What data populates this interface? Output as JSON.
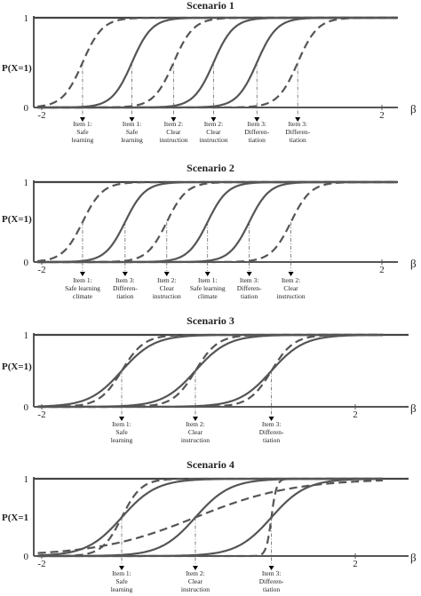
{
  "chart_data": [
    {
      "type": "line",
      "title": "Scenario 1",
      "ylabel": "P(X=1)",
      "xlabel": "β",
      "xlim": [
        -2,
        2.3
      ],
      "ylim": [
        0,
        1
      ],
      "xticks": [
        -2,
        2
      ],
      "yticks": [
        0,
        1
      ],
      "grid": false,
      "function": "logistic P = 1/(1+exp(-a(β-b)))",
      "series": [
        {
          "style": "dashed",
          "b": -1.52,
          "a": 8.5,
          "color": "#555555"
        },
        {
          "style": "solid",
          "b": -0.94,
          "a": 8.5,
          "color": "#555555"
        },
        {
          "style": "dashed",
          "b": -0.45,
          "a": 8.5,
          "color": "#555555"
        },
        {
          "style": "solid",
          "b": 0.02,
          "a": 8.5,
          "color": "#555555"
        },
        {
          "style": "solid",
          "b": 0.53,
          "a": 8.5,
          "color": "#555555"
        },
        {
          "style": "dashed",
          "b": 1.01,
          "a": 8.5,
          "color": "#555555"
        }
      ],
      "item_labels": [
        {
          "x": -1.52,
          "text": [
            "Item 1:",
            "Safe",
            "learning"
          ]
        },
        {
          "x": -0.94,
          "text": [
            "Item 1:",
            "Safe",
            "learning"
          ]
        },
        {
          "x": -0.45,
          "text": [
            "Item 2:",
            "Clear",
            "instruction"
          ]
        },
        {
          "x": 0.02,
          "text": [
            "Item 2:",
            "Clear",
            "instruction"
          ]
        },
        {
          "x": 0.53,
          "text": [
            "Item 3:",
            "Differen-",
            "tiation"
          ]
        },
        {
          "x": 1.01,
          "text": [
            "Item 3:",
            "Differen-",
            "tiation"
          ]
        }
      ]
    },
    {
      "type": "line",
      "title": "Scenario 2",
      "ylabel": "P(X=1)",
      "xlabel": "β",
      "xlim": [
        -2,
        2.3
      ],
      "ylim": [
        0,
        1
      ],
      "xticks": [
        -2,
        2
      ],
      "yticks": [
        0,
        1
      ],
      "grid": false,
      "function": "logistic P = 1/(1+exp(-a(β-b)))",
      "series": [
        {
          "style": "dashed",
          "b": -1.52,
          "a": 8.5,
          "color": "#555555"
        },
        {
          "style": "solid",
          "b": -1.02,
          "a": 8.5,
          "color": "#555555"
        },
        {
          "style": "dashed",
          "b": -0.53,
          "a": 8.5,
          "color": "#555555"
        },
        {
          "style": "solid",
          "b": -0.05,
          "a": 8.5,
          "color": "#555555"
        },
        {
          "style": "solid",
          "b": 0.44,
          "a": 8.5,
          "color": "#555555"
        },
        {
          "style": "dashed",
          "b": 0.93,
          "a": 8.5,
          "color": "#555555"
        }
      ],
      "item_labels": [
        {
          "x": -1.52,
          "text": [
            "Item 1:",
            "Safe learning",
            "climate"
          ]
        },
        {
          "x": -1.02,
          "text": [
            "Item 3:",
            "Differen-",
            "tiation"
          ]
        },
        {
          "x": -0.53,
          "text": [
            "Item 2:",
            "Clear",
            "instruction"
          ]
        },
        {
          "x": -0.05,
          "text": [
            "Item 1:",
            "Safe learning",
            "climate"
          ]
        },
        {
          "x": 0.44,
          "text": [
            "Item 3:",
            "Differen-",
            "tiation"
          ]
        },
        {
          "x": 0.93,
          "text": [
            "Item 2:",
            "Clear",
            "instruction"
          ]
        }
      ]
    },
    {
      "type": "line",
      "title": "Scenario 3",
      "ylabel": "P(X=1)",
      "xlabel": "β",
      "xlim": [
        -2,
        2.3
      ],
      "ylim": [
        0,
        1
      ],
      "xticks": [
        -2,
        2
      ],
      "yticks": [
        0,
        1
      ],
      "grid": false,
      "function": "logistic P = 1/(1+exp(-a(β-b)))",
      "series": [
        {
          "style": "dashed",
          "b": -0.98,
          "a": 7.0,
          "color": "#555555"
        },
        {
          "style": "solid",
          "b": -0.98,
          "a": 4.8,
          "color": "#555555"
        },
        {
          "style": "dashed",
          "b": -0.04,
          "a": 7.0,
          "color": "#555555"
        },
        {
          "style": "solid",
          "b": -0.04,
          "a": 4.8,
          "color": "#555555"
        },
        {
          "style": "dashed",
          "b": 0.93,
          "a": 7.0,
          "color": "#555555"
        },
        {
          "style": "solid",
          "b": 0.93,
          "a": 4.8,
          "color": "#555555"
        }
      ],
      "item_labels": [
        {
          "x": -0.98,
          "text": [
            "Item 1:",
            "Safe",
            "learning"
          ]
        },
        {
          "x": -0.04,
          "text": [
            "Item 2:",
            "Clear",
            "instruction"
          ]
        },
        {
          "x": 0.93,
          "text": [
            "Item 3:",
            "Differen-",
            "tiation"
          ]
        }
      ]
    },
    {
      "type": "line",
      "title": "Scenario 4",
      "ylabel": "P(X=1",
      "xlabel": "β",
      "xlim": [
        -2,
        2.3
      ],
      "ylim": [
        0,
        1
      ],
      "xticks": [
        -2,
        2
      ],
      "yticks": [
        0,
        1
      ],
      "grid": false,
      "function": "logistic P = 1/(1+exp(-a(β-b)))",
      "series": [
        {
          "style": "dashed",
          "b": -0.98,
          "a": 8.0,
          "color": "#555555"
        },
        {
          "style": "solid",
          "b": -0.98,
          "a": 4.5,
          "color": "#555555"
        },
        {
          "style": "dashed",
          "b": -0.04,
          "a": 1.6,
          "color": "#555555"
        },
        {
          "style": "solid",
          "b": -0.04,
          "a": 4.5,
          "color": "#555555"
        },
        {
          "style": "dashed",
          "b": 0.93,
          "a": 30.0,
          "color": "#555555"
        },
        {
          "style": "solid",
          "b": 0.93,
          "a": 4.5,
          "color": "#555555"
        }
      ],
      "item_labels": [
        {
          "x": -0.98,
          "text": [
            "Item 1:",
            "Safe",
            "learning"
          ]
        },
        {
          "x": -0.04,
          "text": [
            "Item 2:",
            "Clear",
            "instruction"
          ]
        },
        {
          "x": 0.93,
          "text": [
            "Item 3:",
            "Differen-",
            "tiation"
          ]
        }
      ]
    }
  ]
}
